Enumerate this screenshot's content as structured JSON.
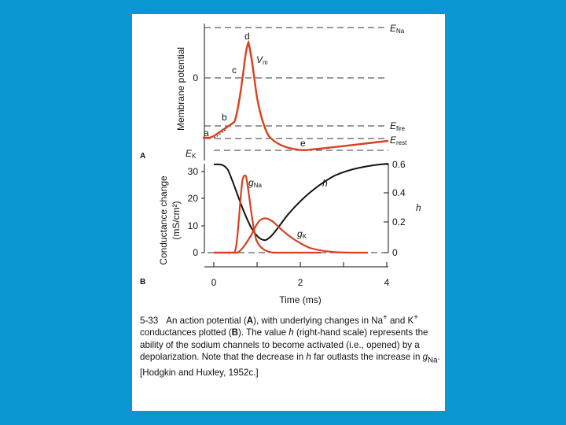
{
  "figure": {
    "panel_a_label": "A",
    "panel_b_label": "B",
    "panel_a": {
      "ylabel": "Membrane potential",
      "zero_label": "0",
      "e_na": {
        "main": "E",
        "sub": "Na"
      },
      "e_fire": {
        "main": "E",
        "sub": "fire"
      },
      "e_rest": {
        "main": "E",
        "sub": "rest"
      },
      "e_k": {
        "main": "E",
        "sub": "K"
      },
      "vm": {
        "main": "V",
        "sub": "m"
      },
      "phase_labels": [
        "a",
        "b",
        "c",
        "d",
        "e"
      ]
    },
    "panel_b": {
      "ylabel_line1": "Conductance change",
      "ylabel_line2": "(mS/cm²)",
      "left_ticks": [
        "30",
        "20",
        "10",
        "0"
      ],
      "right_ticks": [
        "0.6",
        "0.4",
        "0.2",
        "0"
      ],
      "right_axis_label": "h",
      "h_curve_label": "h",
      "gna": {
        "main": "g",
        "sub": "Na"
      },
      "gk": {
        "main": "g",
        "sub": "K"
      }
    },
    "x_ticks": [
      "0",
      "2",
      "4"
    ],
    "xlabel": "Time (ms)",
    "colors": {
      "action_potential": "#d8401f",
      "h_curve": "#111111",
      "background": "#0a97d1"
    }
  },
  "caption": {
    "number": "5-33",
    "text_1": "An action potential (",
    "bold_a": "A",
    "text_2": "), with underlying changes in Na",
    "sup_plus_1": "+",
    "text_3": "and K",
    "sup_plus_2": "+",
    "text_4": " conductances plotted (",
    "bold_b": "B",
    "text_5": "). The value ",
    "italic_h1": "h",
    "text_6": " (right-hand scale) represents the ability of the sodium channels to become activated (i.e., opened) by a depolarization. Note that the decrease in ",
    "italic_h2": "h",
    "text_7": " far outlasts the increase in ",
    "italic_g": "g",
    "sub_na": "Na",
    "text_8": ". [Hodgkin and Huxley, 1952c.]"
  }
}
